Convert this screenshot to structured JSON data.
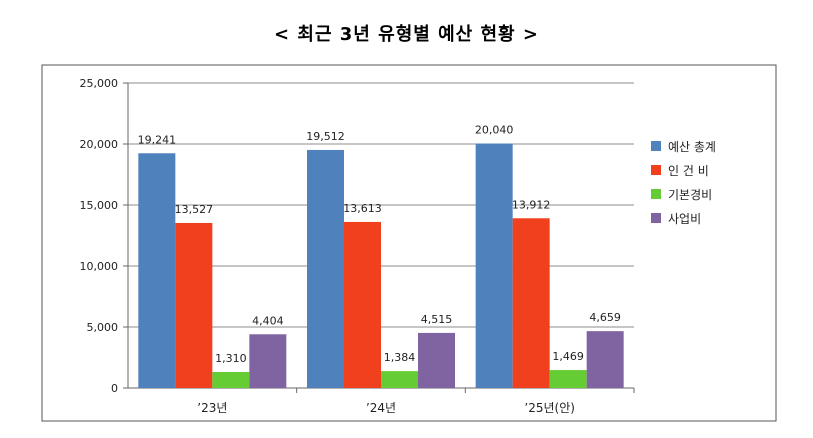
{
  "chart_data": {
    "type": "bar",
    "title": "< 최근 3년 유형별 예산 현황 >",
    "categories": [
      "’23년",
      "’24년",
      "’25년(안)"
    ],
    "ylim": [
      0,
      25000
    ],
    "yticks": [
      "0",
      "5,000",
      "10,000",
      "15,000",
      "20,000",
      "25,000"
    ],
    "grid": true,
    "legend_position": "right",
    "series": [
      {
        "name": "예산 총계",
        "color": "#4F81BD",
        "values": [
          19241,
          19512,
          20040
        ],
        "labels": [
          "19,241",
          "19,512",
          "20,040"
        ]
      },
      {
        "name": "인 건 비",
        "color": "#F0401E",
        "values": [
          13527,
          13613,
          13912
        ],
        "labels": [
          "13,527",
          "13,613",
          "13,912"
        ]
      },
      {
        "name": "기본경비",
        "color": "#66CC33",
        "values": [
          1310,
          1384,
          1469
        ],
        "labels": [
          "1,310",
          "1,384",
          "1,469"
        ]
      },
      {
        "name": "사업비",
        "color": "#8064A2",
        "values": [
          4404,
          4515,
          4659
        ],
        "labels": [
          "4,404",
          "4,515",
          "4,659"
        ]
      }
    ]
  }
}
